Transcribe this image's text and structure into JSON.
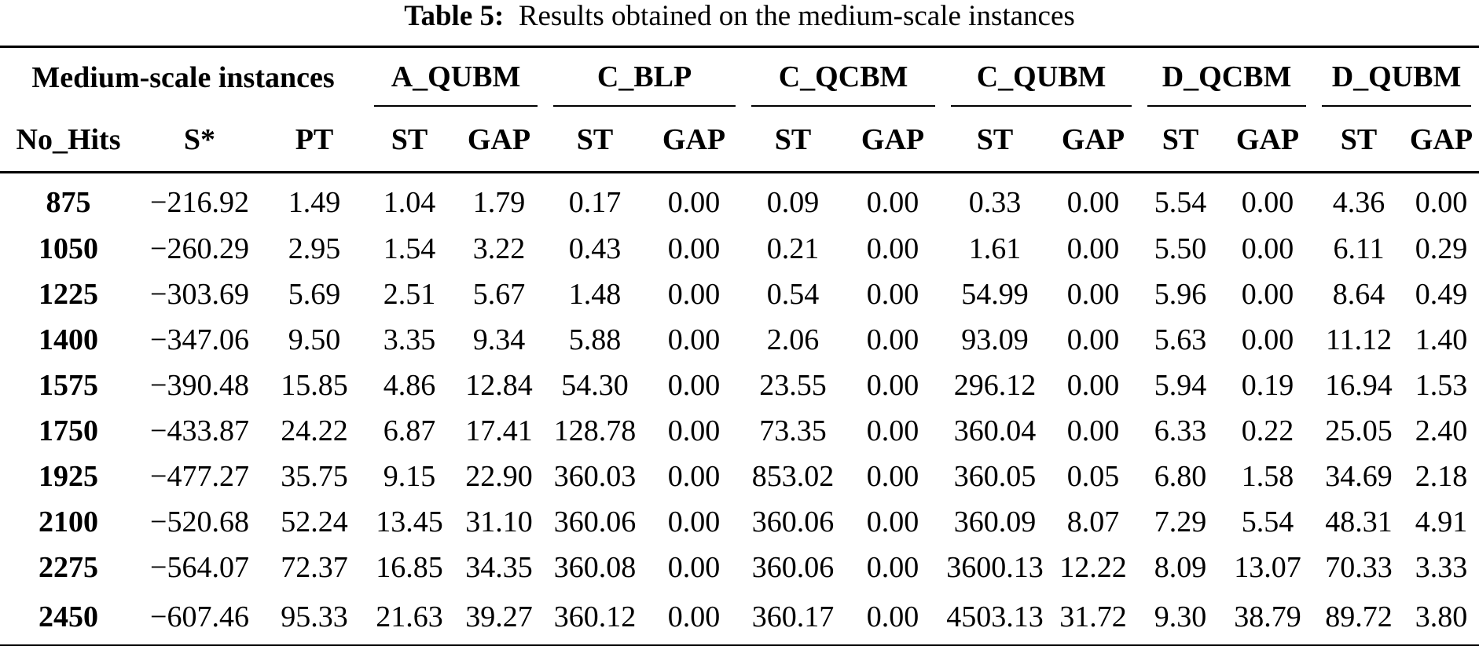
{
  "caption": {
    "label": "Table 5:",
    "text": "Results obtained on the medium-scale instances"
  },
  "group_headers": [
    "Medium-scale instances",
    "A_QUBM",
    "C_BLP",
    "C_QCBM",
    "C_QUBM",
    "D_QCBM",
    "D_QUBM"
  ],
  "column_headers": [
    "No_Hits",
    "S*",
    "PT",
    "ST",
    "GAP",
    "ST",
    "GAP",
    "ST",
    "GAP",
    "ST",
    "GAP",
    "ST",
    "GAP",
    "ST",
    "GAP"
  ],
  "rows": [
    [
      "875",
      "−216.92",
      "1.49",
      "1.04",
      "1.79",
      "0.17",
      "0.00",
      "0.09",
      "0.00",
      "0.33",
      "0.00",
      "5.54",
      "0.00",
      "4.36",
      "0.00"
    ],
    [
      "1050",
      "−260.29",
      "2.95",
      "1.54",
      "3.22",
      "0.43",
      "0.00",
      "0.21",
      "0.00",
      "1.61",
      "0.00",
      "5.50",
      "0.00",
      "6.11",
      "0.29"
    ],
    [
      "1225",
      "−303.69",
      "5.69",
      "2.51",
      "5.67",
      "1.48",
      "0.00",
      "0.54",
      "0.00",
      "54.99",
      "0.00",
      "5.96",
      "0.00",
      "8.64",
      "0.49"
    ],
    [
      "1400",
      "−347.06",
      "9.50",
      "3.35",
      "9.34",
      "5.88",
      "0.00",
      "2.06",
      "0.00",
      "93.09",
      "0.00",
      "5.63",
      "0.00",
      "11.12",
      "1.40"
    ],
    [
      "1575",
      "−390.48",
      "15.85",
      "4.86",
      "12.84",
      "54.30",
      "0.00",
      "23.55",
      "0.00",
      "296.12",
      "0.00",
      "5.94",
      "0.19",
      "16.94",
      "1.53"
    ],
    [
      "1750",
      "−433.87",
      "24.22",
      "6.87",
      "17.41",
      "128.78",
      "0.00",
      "73.35",
      "0.00",
      "360.04",
      "0.00",
      "6.33",
      "0.22",
      "25.05",
      "2.40"
    ],
    [
      "1925",
      "−477.27",
      "35.75",
      "9.15",
      "22.90",
      "360.03",
      "0.00",
      "853.02",
      "0.00",
      "360.05",
      "0.05",
      "6.80",
      "1.58",
      "34.69",
      "2.18"
    ],
    [
      "2100",
      "−520.68",
      "52.24",
      "13.45",
      "31.10",
      "360.06",
      "0.00",
      "360.06",
      "0.00",
      "360.09",
      "8.07",
      "7.29",
      "5.54",
      "48.31",
      "4.91"
    ],
    [
      "2275",
      "−564.07",
      "72.37",
      "16.85",
      "34.35",
      "360.08",
      "0.00",
      "360.06",
      "0.00",
      "3600.13",
      "12.22",
      "8.09",
      "13.07",
      "70.33",
      "3.33"
    ],
    [
      "2450",
      "−607.46",
      "95.33",
      "21.63",
      "39.27",
      "360.12",
      "0.00",
      "360.17",
      "0.00",
      "4503.13",
      "31.72",
      "9.30",
      "38.79",
      "89.72",
      "3.80"
    ]
  ]
}
